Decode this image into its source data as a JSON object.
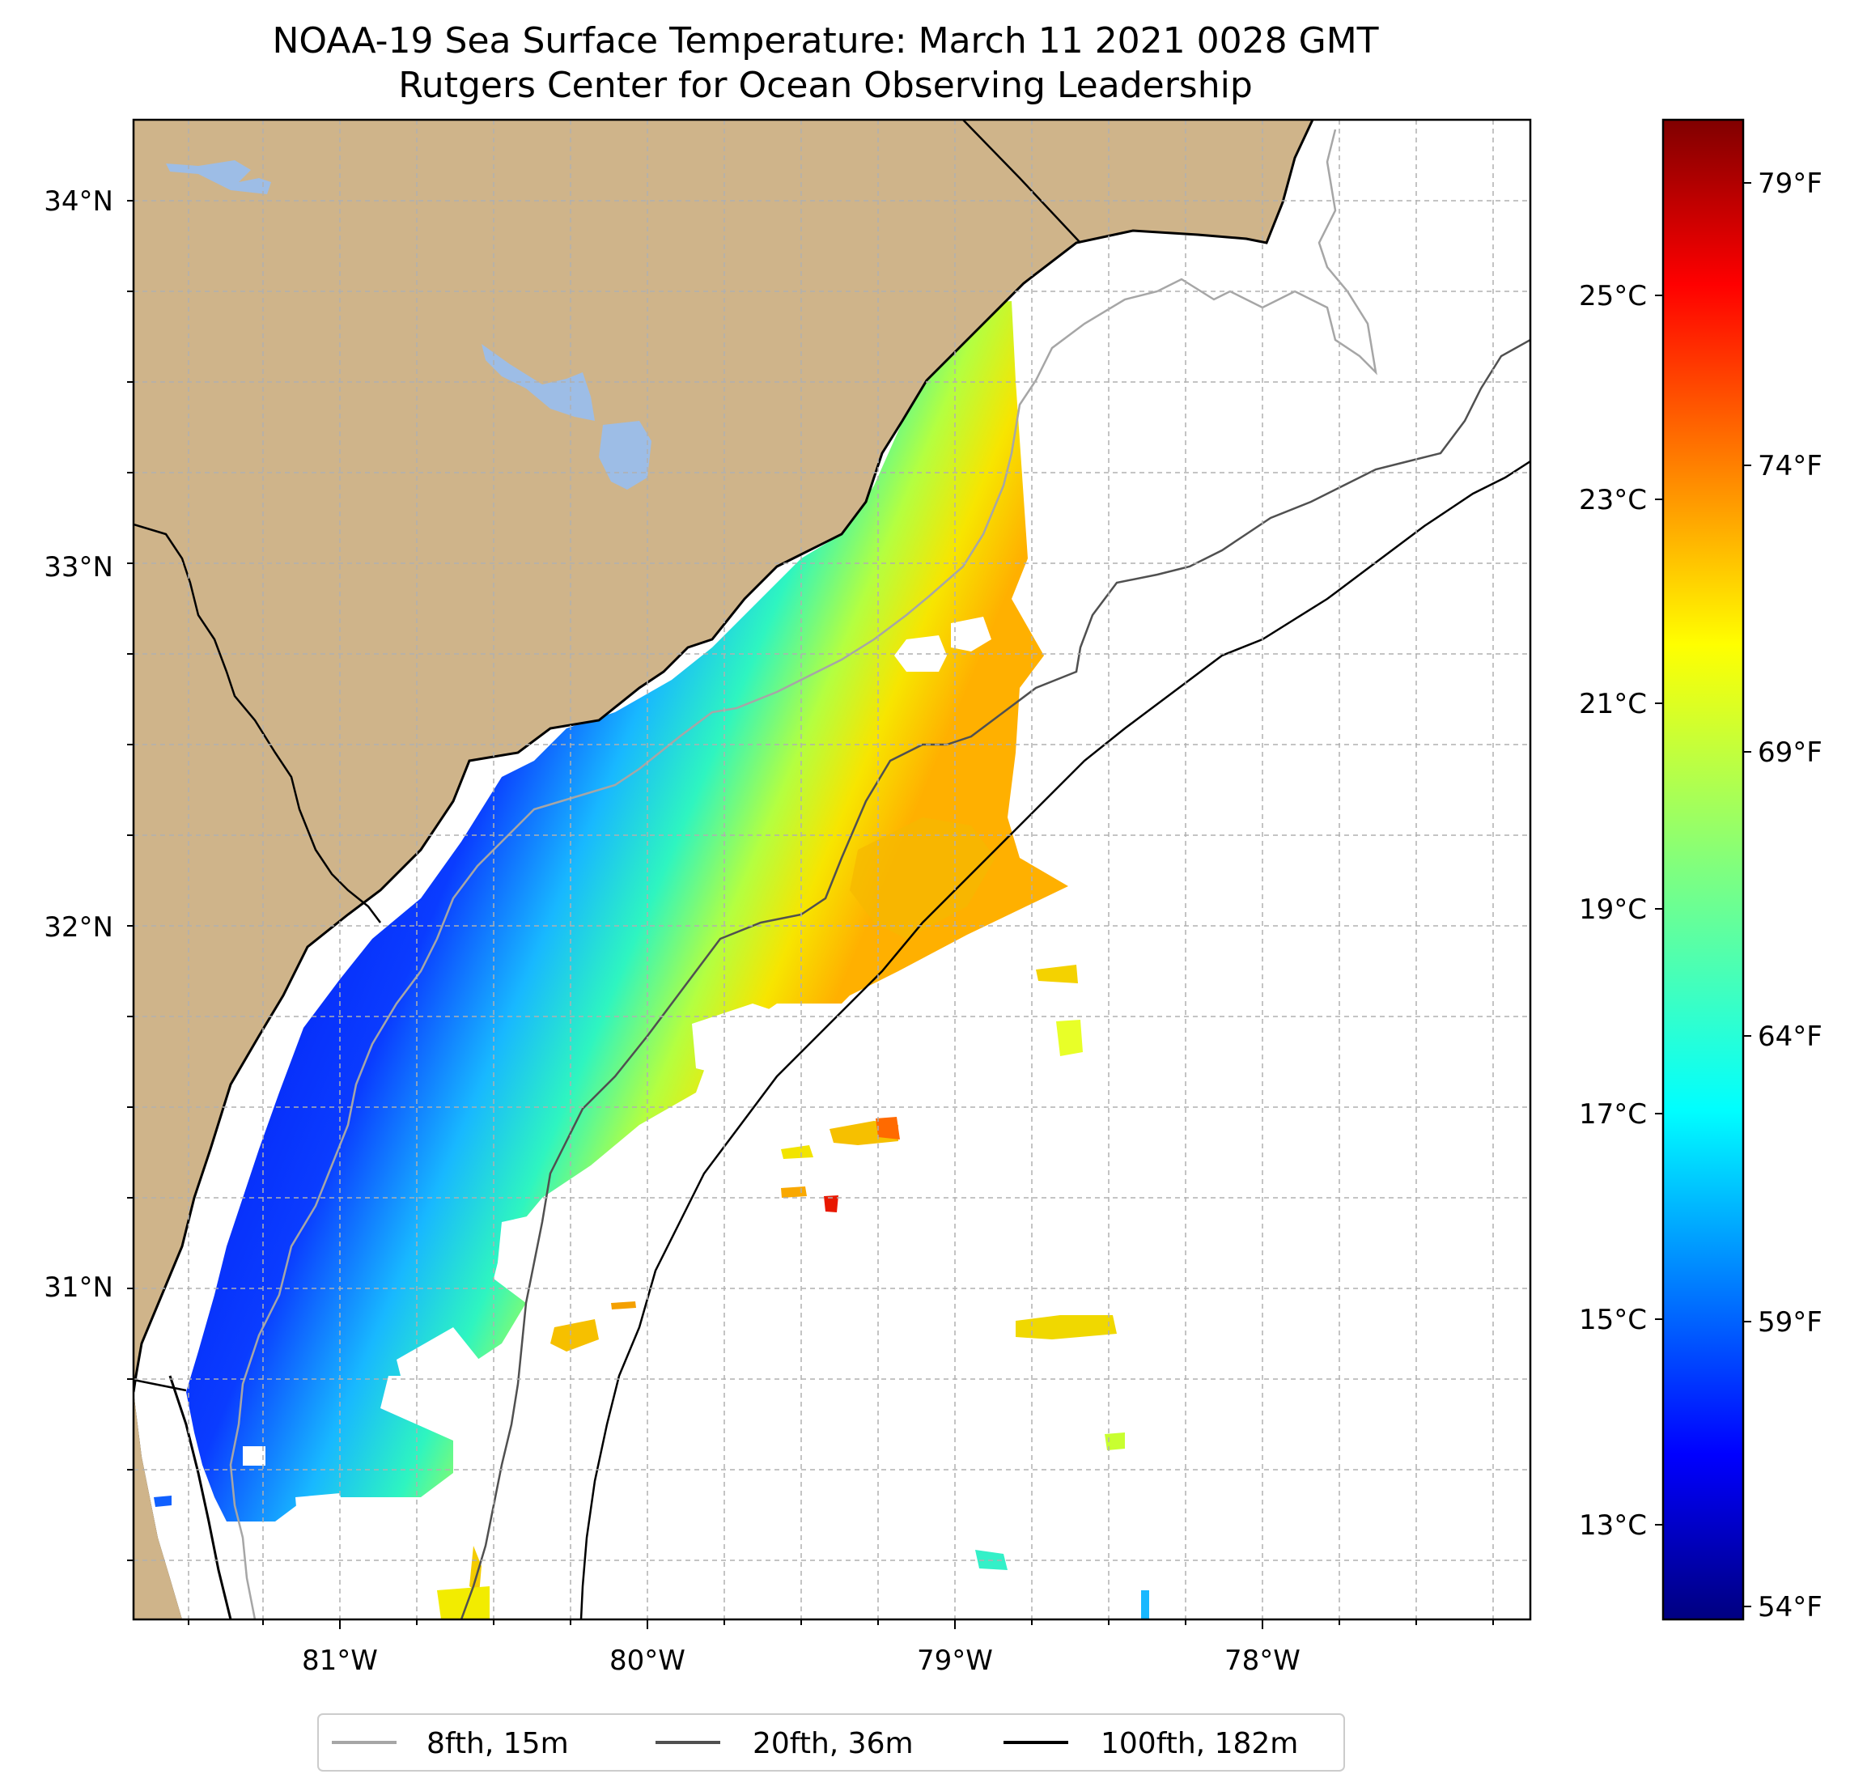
{
  "title": {
    "line1": "NOAA-19 Sea Surface Temperature: March 11 2021 0028 GMT",
    "line2": "Rutgers Center for Ocean Observing Leadership"
  },
  "map": {
    "lat_labels": [
      "34°N",
      "33°N",
      "32°N",
      "31°N"
    ],
    "lon_labels": [
      "81°W",
      "80°W",
      "79°W",
      "78°W"
    ],
    "colors": {
      "land": "#cfb48a",
      "lake": "#9dbde6",
      "coast": "#000000",
      "grid": "#b0b0b0"
    }
  },
  "colorbar": {
    "celsius_labels": [
      "25°C",
      "23°C",
      "21°C",
      "19°C",
      "17°C",
      "15°C",
      "13°C"
    ],
    "fahrenheit_labels": [
      "79°F",
      "74°F",
      "69°F",
      "64°F",
      "59°F",
      "54°F"
    ],
    "colormap": "jet"
  },
  "legend": {
    "items": [
      {
        "label": "8fth, 15m",
        "color": "#a6a6a6"
      },
      {
        "label": "20fth, 36m",
        "color": "#505050"
      },
      {
        "label": "100fth, 182m",
        "color": "#000000"
      }
    ]
  }
}
